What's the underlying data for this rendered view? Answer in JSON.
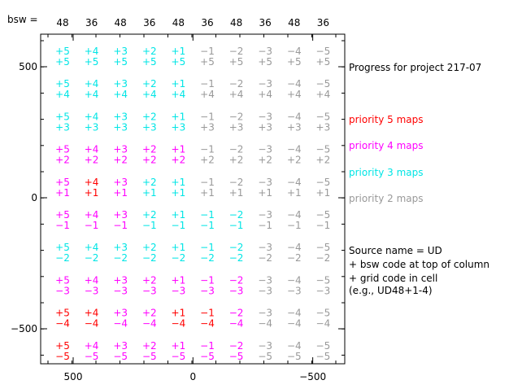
{
  "chart_data": {
    "type": "table",
    "bsw_label": "bsw =",
    "columns": [
      {
        "bsw": "48",
        "level": "+5"
      },
      {
        "bsw": "36",
        "level": "+4"
      },
      {
        "bsw": "48",
        "level": "+3"
      },
      {
        "bsw": "36",
        "level": "+2"
      },
      {
        "bsw": "48",
        "level": "+1"
      },
      {
        "bsw": "36",
        "level": "−1"
      },
      {
        "bsw": "48",
        "level": "−2"
      },
      {
        "bsw": "36",
        "level": "−3"
      },
      {
        "bsw": "48",
        "level": "−4"
      },
      {
        "bsw": "36",
        "level": "−5"
      }
    ],
    "rows": [
      "+5",
      "+4",
      "+3",
      "+2",
      "+1",
      "−1",
      "−2",
      "−3",
      "−4",
      "−5"
    ],
    "priority_grid": [
      [
        3,
        3,
        3,
        3,
        3,
        2,
        2,
        2,
        2,
        2
      ],
      [
        3,
        3,
        3,
        3,
        3,
        2,
        2,
        2,
        2,
        2
      ],
      [
        3,
        3,
        3,
        3,
        3,
        2,
        2,
        2,
        2,
        2
      ],
      [
        4,
        4,
        4,
        4,
        4,
        2,
        2,
        2,
        2,
        2
      ],
      [
        4,
        5,
        4,
        3,
        3,
        2,
        2,
        2,
        2,
        2
      ],
      [
        4,
        4,
        4,
        3,
        3,
        3,
        3,
        2,
        2,
        2
      ],
      [
        3,
        3,
        3,
        3,
        3,
        3,
        3,
        2,
        2,
        2
      ],
      [
        4,
        4,
        4,
        4,
        4,
        4,
        4,
        2,
        2,
        2
      ],
      [
        5,
        5,
        4,
        4,
        5,
        5,
        4,
        2,
        2,
        2
      ],
      [
        5,
        4,
        4,
        4,
        4,
        4,
        4,
        2,
        2,
        2
      ]
    ],
    "priority_colors": {
      "5": "#ff0000",
      "4": "#ff00ff",
      "3": "#00e5e5",
      "2": "#999999"
    },
    "x_ticks": [
      "500",
      "0",
      "−500"
    ],
    "y_ticks": [
      "500",
      "0",
      "−500"
    ],
    "xlim": [
      650,
      -650
    ],
    "ylim": [
      -640,
      620
    ],
    "legend": [
      {
        "label": "priority 5 maps",
        "color": "#ff0000"
      },
      {
        "label": "priority 4 maps",
        "color": "#ff00ff"
      },
      {
        "label": "priority 3 maps",
        "color": "#00e5e5"
      },
      {
        "label": "priority 2 maps",
        "color": "#999999"
      }
    ]
  },
  "title": "Progress for project 217-07",
  "notes": [
    "Source name = UD",
    "+ bsw code at top of column",
    "+ grid code in cell",
    "(e.g., UD48+1-4)"
  ]
}
